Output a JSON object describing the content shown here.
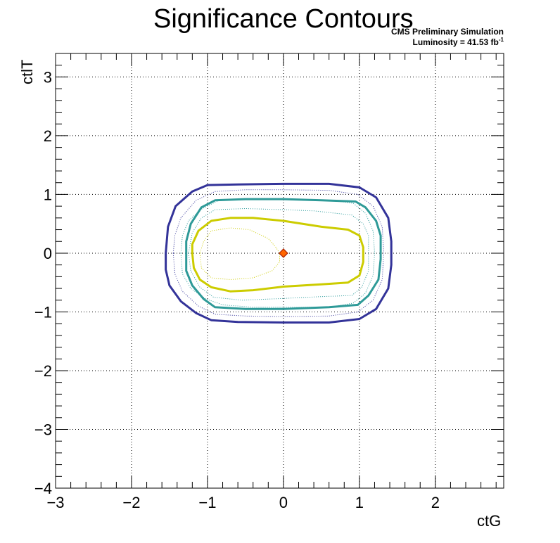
{
  "chart_data": {
    "type": "contour",
    "title": "Significance Contours",
    "annotation_line1": "CMS Preliminary Simulation",
    "annotation_line2_prefix": "Luminosity = 41.53 fb",
    "annotation_line2_sup": "-1",
    "xlabel": "ctG",
    "ylabel": "ctlT",
    "xlim": [
      -3,
      2.9
    ],
    "ylim": [
      -4,
      3.4
    ],
    "xticks": [
      -3,
      -2,
      -1,
      0,
      1,
      2
    ],
    "yticks": [
      -4,
      -3,
      -2,
      -1,
      0,
      1,
      2,
      3
    ],
    "xtick_labels": [
      "−3",
      "−2",
      "−1",
      "0",
      "1",
      "2"
    ],
    "ytick_labels": [
      "−4",
      "−3",
      "−2",
      "−1",
      "0",
      "1",
      "2",
      "3"
    ],
    "grid": true,
    "best_fit_marker": {
      "x": 0,
      "y": 0,
      "color": "#ff6600",
      "border": "#aa2200"
    },
    "series": [
      {
        "style": "solid",
        "color": "#333399",
        "width": 3,
        "points": [
          [
            -1.55,
            0
          ],
          [
            -1.55,
            -0.28
          ],
          [
            -1.5,
            -0.55
          ],
          [
            -1.35,
            -0.82
          ],
          [
            -1.15,
            -1.02
          ],
          [
            -0.95,
            -1.14
          ],
          [
            -0.6,
            -1.17
          ],
          [
            0,
            -1.18
          ],
          [
            0.6,
            -1.18
          ],
          [
            1.0,
            -1.12
          ],
          [
            1.22,
            -0.95
          ],
          [
            1.38,
            -0.6
          ],
          [
            1.42,
            -0.2
          ],
          [
            1.42,
            0.2
          ],
          [
            1.38,
            0.6
          ],
          [
            1.22,
            0.95
          ],
          [
            1.0,
            1.12
          ],
          [
            0.6,
            1.18
          ],
          [
            0,
            1.18
          ],
          [
            -0.6,
            1.17
          ],
          [
            -1.0,
            1.16
          ],
          [
            -1.2,
            1.05
          ],
          [
            -1.42,
            0.8
          ],
          [
            -1.52,
            0.45
          ],
          [
            -1.55,
            0
          ]
        ]
      },
      {
        "style": "dotted",
        "color": "#333399",
        "width": 1,
        "points": [
          [
            -1.45,
            0
          ],
          [
            -1.43,
            -0.35
          ],
          [
            -1.33,
            -0.65
          ],
          [
            -1.12,
            -0.9
          ],
          [
            -0.9,
            -1.04
          ],
          [
            -0.5,
            -1.07
          ],
          [
            0,
            -1.08
          ],
          [
            0.6,
            -1.07
          ],
          [
            0.98,
            -1.0
          ],
          [
            1.18,
            -0.8
          ],
          [
            1.3,
            -0.45
          ],
          [
            1.32,
            0
          ],
          [
            1.3,
            0.45
          ],
          [
            1.18,
            0.8
          ],
          [
            0.98,
            1.0
          ],
          [
            0.6,
            1.07
          ],
          [
            0,
            1.08
          ],
          [
            -0.5,
            1.08
          ],
          [
            -0.9,
            1.05
          ],
          [
            -1.15,
            0.9
          ],
          [
            -1.35,
            0.6
          ],
          [
            -1.43,
            0.3
          ],
          [
            -1.45,
            0
          ]
        ]
      },
      {
        "style": "dotted",
        "color": "#2a9a9a",
        "width": 1,
        "points": [
          [
            -1.35,
            0
          ],
          [
            -1.33,
            -0.35
          ],
          [
            -1.22,
            -0.6
          ],
          [
            -1.02,
            -0.78
          ],
          [
            -0.8,
            -0.88
          ],
          [
            -0.4,
            -0.92
          ],
          [
            0,
            -0.92
          ],
          [
            0.6,
            -0.92
          ],
          [
            0.92,
            -0.85
          ],
          [
            1.08,
            -0.68
          ],
          [
            1.18,
            -0.38
          ],
          [
            1.2,
            0
          ],
          [
            1.18,
            0.38
          ],
          [
            1.08,
            0.68
          ],
          [
            0.92,
            0.85
          ],
          [
            0.6,
            0.9
          ],
          [
            0,
            0.92
          ],
          [
            -0.4,
            0.92
          ],
          [
            -0.85,
            0.9
          ],
          [
            -1.08,
            0.75
          ],
          [
            -1.25,
            0.55
          ],
          [
            -1.33,
            0.3
          ],
          [
            -1.35,
            0
          ]
        ]
      },
      {
        "style": "solid",
        "color": "#2e9a98",
        "width": 3,
        "points": [
          [
            -1.28,
            0
          ],
          [
            -1.28,
            -0.3
          ],
          [
            -1.2,
            -0.55
          ],
          [
            -1.05,
            -0.78
          ],
          [
            -0.9,
            -0.92
          ],
          [
            -0.5,
            -0.95
          ],
          [
            0,
            -0.95
          ],
          [
            0.6,
            -0.92
          ],
          [
            0.98,
            -0.88
          ],
          [
            1.12,
            -0.72
          ],
          [
            1.25,
            -0.45
          ],
          [
            1.28,
            -0.1
          ],
          [
            1.28,
            0.3
          ],
          [
            1.22,
            0.55
          ],
          [
            1.08,
            0.78
          ],
          [
            0.95,
            0.88
          ],
          [
            0.5,
            0.9
          ],
          [
            0,
            0.92
          ],
          [
            -0.5,
            0.92
          ],
          [
            -0.9,
            0.9
          ],
          [
            -1.08,
            0.78
          ],
          [
            -1.22,
            0.5
          ],
          [
            -1.28,
            0.2
          ],
          [
            -1.28,
            0
          ]
        ]
      },
      {
        "style": "dotted",
        "color": "#2a9a9a",
        "width": 1,
        "points": [
          [
            -1.25,
            0
          ],
          [
            -1.22,
            -0.3
          ],
          [
            -1.1,
            -0.58
          ],
          [
            -0.92,
            -0.75
          ],
          [
            -0.55,
            -0.8
          ],
          [
            0,
            -0.77
          ],
          [
            0.5,
            -0.74
          ],
          [
            0.9,
            -0.72
          ],
          [
            1.03,
            -0.58
          ],
          [
            1.12,
            -0.3
          ],
          [
            1.12,
            0
          ],
          [
            1.12,
            0.3
          ],
          [
            1.05,
            0.5
          ],
          [
            0.9,
            0.65
          ],
          [
            0.4,
            0.72
          ],
          [
            0,
            0.74
          ],
          [
            -0.5,
            0.76
          ],
          [
            -0.9,
            0.74
          ],
          [
            -1.08,
            0.6
          ],
          [
            -1.2,
            0.35
          ],
          [
            -1.25,
            0
          ]
        ]
      },
      {
        "style": "solid",
        "color": "#cccc00",
        "width": 3,
        "points": [
          [
            -1.2,
            0
          ],
          [
            -1.18,
            -0.25
          ],
          [
            -1.1,
            -0.45
          ],
          [
            -0.95,
            -0.58
          ],
          [
            -0.7,
            -0.65
          ],
          [
            -0.4,
            -0.63
          ],
          [
            0,
            -0.57
          ],
          [
            0.5,
            -0.53
          ],
          [
            0.85,
            -0.5
          ],
          [
            1.0,
            -0.38
          ],
          [
            1.05,
            -0.15
          ],
          [
            1.05,
            0.1
          ],
          [
            1.0,
            0.3
          ],
          [
            0.85,
            0.4
          ],
          [
            0.5,
            0.45
          ],
          [
            0,
            0.55
          ],
          [
            -0.4,
            0.6
          ],
          [
            -0.7,
            0.6
          ],
          [
            -0.95,
            0.55
          ],
          [
            -1.12,
            0.38
          ],
          [
            -1.2,
            0.15
          ],
          [
            -1.2,
            0
          ]
        ]
      },
      {
        "style": "dotted",
        "color": "#cccc00",
        "width": 1,
        "points": [
          [
            -1.1,
            0
          ],
          [
            -1.08,
            -0.25
          ],
          [
            -0.95,
            -0.42
          ],
          [
            -0.7,
            -0.45
          ],
          [
            -0.4,
            -0.42
          ],
          [
            -0.15,
            -0.3
          ],
          [
            -0.05,
            -0.15
          ],
          [
            -0.05,
            0
          ],
          [
            -0.1,
            0.1
          ],
          [
            -0.2,
            0.25
          ],
          [
            -0.45,
            0.4
          ],
          [
            -0.7,
            0.43
          ],
          [
            -0.95,
            0.38
          ],
          [
            -1.05,
            0.2
          ],
          [
            -1.1,
            0
          ]
        ]
      }
    ]
  }
}
